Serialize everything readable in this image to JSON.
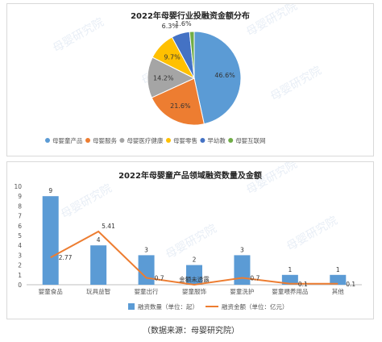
{
  "source_note": "（数据来源：母婴研究院）",
  "watermark_text": "母婴研究院",
  "colors": {
    "blue": "#5b9bd5",
    "orange": "#ed7d31",
    "gray": "#a5a5a5",
    "yellow": "#ffc000",
    "darkblue": "#4472c4",
    "green": "#70ad47",
    "bar": "#5b9bd5",
    "line": "#ed7d31"
  },
  "chart_data": [
    {
      "type": "pie",
      "title": "2022年母婴行业投融资金额分布",
      "slices": [
        {
          "label": "母婴童产品",
          "value": 46.6,
          "value_label": "46.6%"
        },
        {
          "label": "母婴服务",
          "value": 21.6,
          "value_label": "21.6%"
        },
        {
          "label": "母婴医疗健康",
          "value": 14.2,
          "value_label": "14.2%"
        },
        {
          "label": "母婴零售",
          "value": 9.7,
          "value_label": "9.7%"
        },
        {
          "label": "早幼教",
          "value": 6.3,
          "value_label": "6.3%"
        },
        {
          "label": "母婴互联网",
          "value": 1.6,
          "value_label": "1.6%"
        }
      ],
      "legend_position": "bottom"
    },
    {
      "type": "bar",
      "title": "2022年母婴童产品领域融资数量及金额",
      "categories": [
        "婴童食品",
        "玩具益智",
        "婴童出行",
        "婴童服饰",
        "婴童洗护",
        "婴童喂养用品",
        "其他"
      ],
      "series": [
        {
          "name": "融资数量（单位：起）",
          "type": "bar",
          "values": [
            9,
            4,
            3,
            2,
            3,
            1,
            1
          ],
          "labels": [
            "9",
            "4",
            "3",
            "2",
            "3",
            "1",
            "1"
          ]
        },
        {
          "name": "融资金额（单位：亿元）",
          "type": "line",
          "values": [
            2.77,
            5.41,
            0.7,
            null,
            0.7,
            0.1,
            0.1
          ],
          "labels": [
            "2.77",
            "5.41",
            "0.7",
            "金额未透露",
            "0.7",
            "0.1",
            "0.1"
          ]
        }
      ],
      "yticks": [
        "0",
        "1",
        "2",
        "3",
        "4",
        "5",
        "6",
        "7",
        "8",
        "9",
        "10"
      ],
      "ylim": [
        0,
        10
      ],
      "grid": false,
      "legend_position": "bottom"
    }
  ]
}
